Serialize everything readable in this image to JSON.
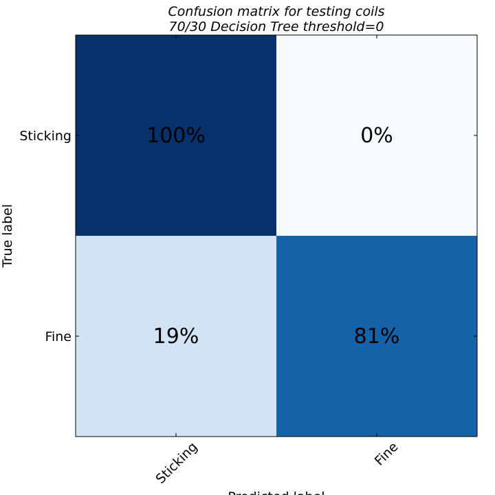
{
  "chart_data": {
    "type": "heatmap",
    "title": "Confusion matrix for testing coils\n 70/30 Decision Tree threshold=0",
    "title_lines": [
      "Confusion matrix for testing coils",
      " 70/30 Decision Tree threshold=0"
    ],
    "xlabel": "Predicted label",
    "ylabel": "True label",
    "row_labels": [
      "Sticking",
      "Fine"
    ],
    "col_labels": [
      "Sticking",
      "Fine"
    ],
    "values": [
      [
        100,
        0
      ],
      [
        19,
        81
      ]
    ],
    "cell_labels": [
      [
        "100%",
        "0%"
      ],
      [
        "19%",
        "81%"
      ]
    ],
    "colormap": "Blues",
    "vmin": 0,
    "vmax": 100,
    "colors": {
      "low": "#f7fbff",
      "high": "#08306b",
      "text": "#000000",
      "frame": "#000000"
    }
  }
}
